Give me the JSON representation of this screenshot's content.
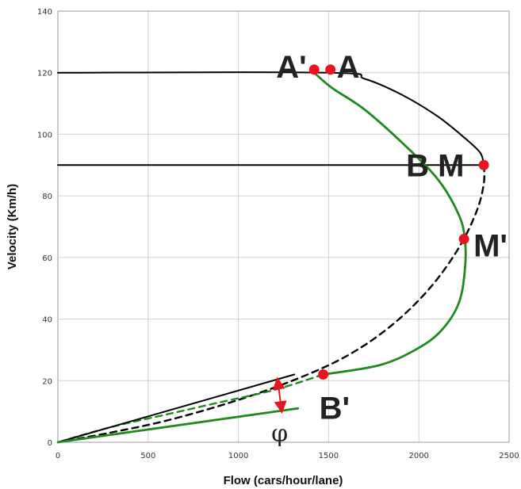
{
  "chart_data": {
    "type": "line",
    "title": "",
    "xlabel": "Flow (cars/hour/lane)",
    "ylabel": "Velocity (Km/h)",
    "xlim": [
      0,
      2500
    ],
    "ylim": [
      0,
      140
    ],
    "x_ticks": [
      "0",
      "500",
      "1000",
      "1500",
      "2000",
      "2500"
    ],
    "y_ticks": [
      "0",
      "20",
      "40",
      "60",
      "80",
      "100",
      "120",
      "140"
    ],
    "grid": true,
    "legend": "none",
    "colors": {
      "black_curve": "#000000",
      "green_curve": "#1f8a1f",
      "points": "#e8141e",
      "arrow": "#e8141e"
    },
    "series": [
      {
        "color": "#000000",
        "style": "solid",
        "points": [
          [
            0,
            120
          ],
          [
            1500,
            120
          ],
          [
            1700,
            118
          ],
          [
            1900,
            113
          ],
          [
            2100,
            106
          ],
          [
            2250,
            99
          ],
          [
            2340,
            94
          ],
          [
            2360,
            90
          ]
        ]
      },
      {
        "color": "#000000",
        "style": "dashed",
        "points": [
          [
            2360,
            90
          ],
          [
            2360,
            84
          ],
          [
            2320,
            75
          ],
          [
            2220,
            63
          ],
          [
            2060,
            50
          ],
          [
            1850,
            38
          ],
          [
            1600,
            28
          ],
          [
            1300,
            20
          ],
          [
            960,
            13
          ],
          [
            600,
            7
          ],
          [
            280,
            3
          ],
          [
            0,
            0
          ]
        ]
      },
      {
        "color": "#000000",
        "style": "solid",
        "points": [
          [
            0,
            90
          ],
          [
            2360,
            90
          ]
        ]
      },
      {
        "color": "#1f8a1f",
        "style": "solid",
        "points": [
          [
            1420,
            120
          ],
          [
            1520,
            115
          ],
          [
            1700,
            108
          ],
          [
            1930,
            96
          ],
          [
            2110,
            85
          ],
          [
            2220,
            74
          ],
          [
            2255,
            66
          ],
          [
            2255,
            56
          ],
          [
            2220,
            45
          ],
          [
            2120,
            36
          ],
          [
            1980,
            30
          ],
          [
            1780,
            25
          ],
          [
            1470,
            22
          ]
        ]
      },
      {
        "color": "#1f8a1f",
        "style": "dashed",
        "points": [
          [
            1470,
            22
          ],
          [
            1200,
            17
          ],
          [
            900,
            13
          ],
          [
            600,
            9
          ],
          [
            300,
            5
          ],
          [
            0,
            0
          ]
        ]
      },
      {
        "color": "#000000",
        "style": "solid",
        "points": [
          [
            0,
            0
          ],
          [
            1310,
            22
          ]
        ]
      },
      {
        "color": "#1f8a1f",
        "style": "solid",
        "points": [
          [
            0,
            0
          ],
          [
            1330,
            11
          ]
        ]
      }
    ],
    "points": [
      {
        "label": "A'",
        "x": 1420,
        "y": 121
      },
      {
        "label": "A",
        "x": 1510,
        "y": 121
      },
      {
        "label": "B M",
        "x": 2360,
        "y": 90
      },
      {
        "label": "M'",
        "x": 2250,
        "y": 66
      },
      {
        "label": "B'",
        "x": 1470,
        "y": 22
      }
    ],
    "angle_arrow": {
      "x": 1220,
      "y_from": 20,
      "y_to": 10.5,
      "label": "φ"
    }
  }
}
